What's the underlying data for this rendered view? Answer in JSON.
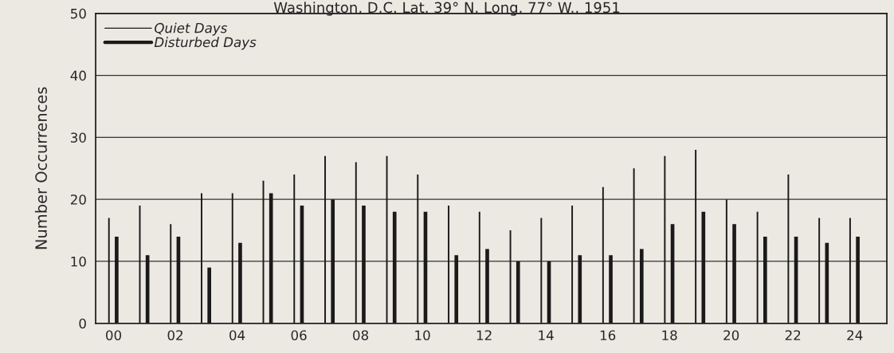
{
  "chart_data": {
    "type": "bar",
    "title": "Washington, D.C. Lat. 39° N. Long. 77° W., 1951",
    "ylabel": "Number Occurrences",
    "categories": [
      "00",
      null,
      "02",
      null,
      "04",
      null,
      "06",
      null,
      "08",
      null,
      "10",
      null,
      "12",
      null,
      "14",
      null,
      "16",
      null,
      "18",
      null,
      "20",
      null,
      "22",
      null,
      "24"
    ],
    "series": [
      {
        "name": "Quiet Days",
        "color": "#1a1a1a",
        "values": [
          17,
          19,
          16,
          21,
          21,
          23,
          24,
          27,
          26,
          27,
          24,
          19,
          18,
          15,
          17,
          19,
          22,
          25,
          27,
          28,
          20,
          18,
          24,
          17,
          17
        ]
      },
      {
        "name": "Disturbed Days",
        "color": "#1a1a1a",
        "values": [
          14,
          11,
          14,
          9,
          13,
          21,
          19,
          20,
          19,
          18,
          18,
          11,
          12,
          10,
          10,
          11,
          11,
          12,
          16,
          18,
          16,
          14,
          14,
          13,
          14
        ]
      }
    ],
    "ylim": [
      0,
      50
    ],
    "yticks": [
      0,
      10,
      20,
      30,
      40,
      50
    ],
    "grid": "y",
    "legend": "top left"
  }
}
